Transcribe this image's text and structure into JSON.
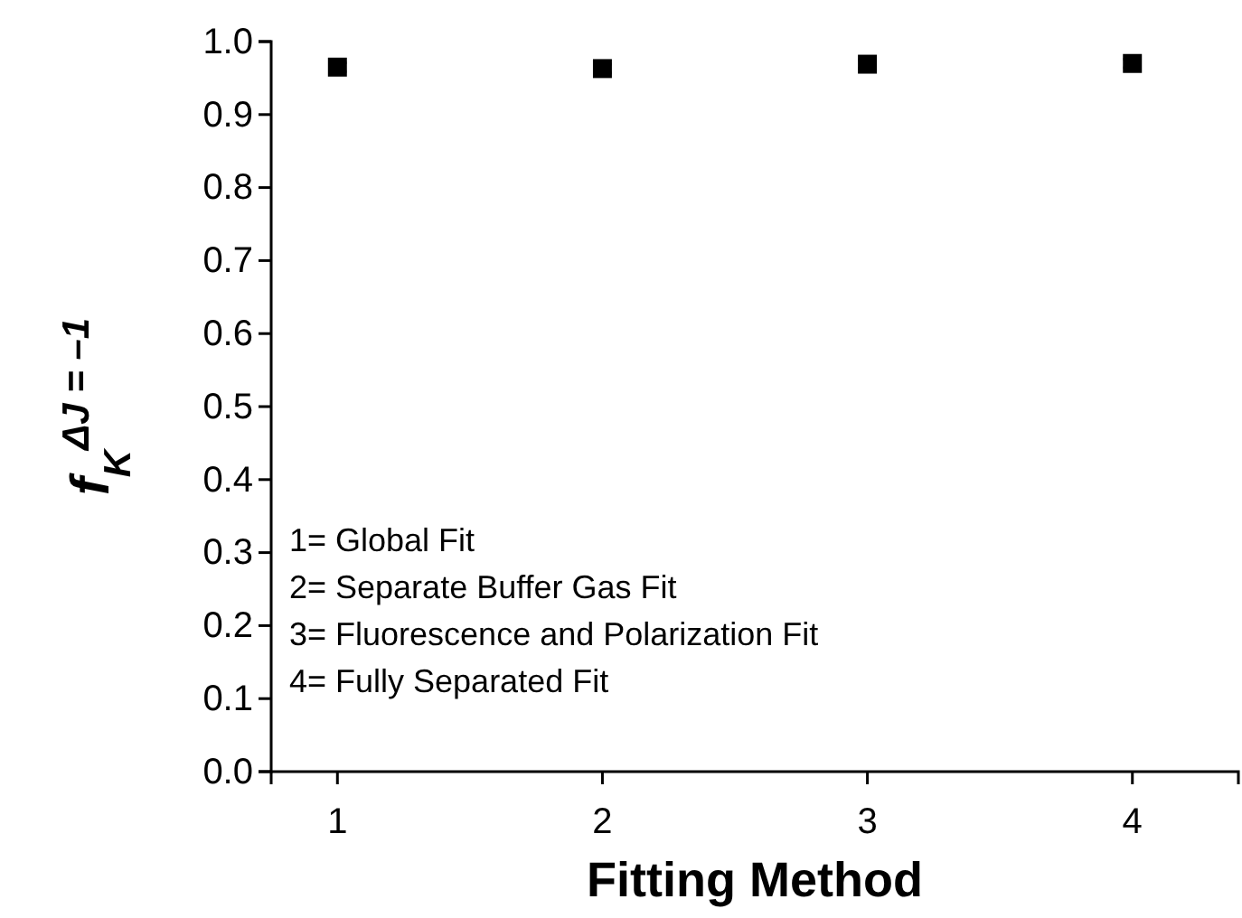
{
  "chart_data": {
    "type": "scatter",
    "xlabel": "Fitting Method",
    "ylabel": "f$_{K}$$^{ΔJ = –1}$",
    "x": [
      1,
      2,
      3,
      4
    ],
    "series": [
      {
        "color": "#000000",
        "values": [
          0.965,
          0.963,
          0.969,
          0.97
        ],
        "errors": [
          0.006,
          0.006,
          0.006,
          0.006
        ]
      }
    ],
    "xlim": [
      0.75,
      4.4
    ],
    "xticks": [
      1,
      2,
      3,
      4
    ],
    "ylim": [
      0,
      1
    ],
    "yticks": [
      {
        "value": 0,
        "label": "0.0"
      },
      0.1,
      0.2,
      0.3,
      0.4,
      0.5,
      0.6,
      0.7,
      0.8,
      0.9,
      {
        "value": 1,
        "label": "1.0"
      }
    ],
    "marker": "square",
    "annotations": [
      "1= Global Fit",
      "2= Separate Buffer Gas Fit",
      "3= Fluorescence and Polarization Fit",
      "4= Fully Separated Fit"
    ]
  }
}
